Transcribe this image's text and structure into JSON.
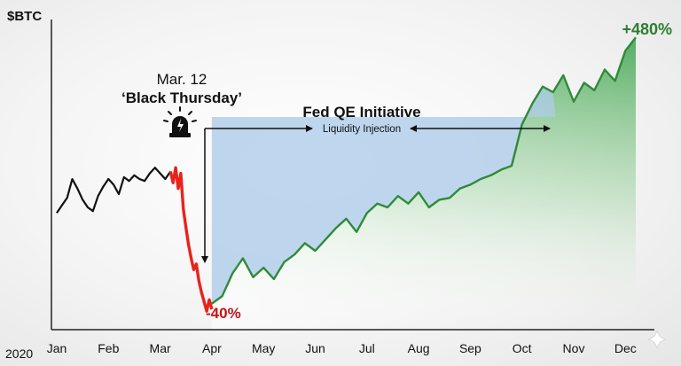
{
  "chart_data": {
    "type": "line",
    "ylabel": "$BTC",
    "year_label": "2020",
    "categories": [
      "Jan",
      "Feb",
      "Mar",
      "Apr",
      "May",
      "Jun",
      "Jul",
      "Aug",
      "Sep",
      "Oct",
      "Nov",
      "Dec"
    ],
    "series": [
      {
        "x": [
          0,
          0.1,
          0.2,
          0.3,
          0.4,
          0.5,
          0.6,
          0.7,
          0.8,
          0.9,
          1.0,
          1.1,
          1.2,
          1.3,
          1.4,
          1.5,
          1.6,
          1.7,
          1.8,
          1.9,
          2.0,
          2.1,
          2.2
        ],
        "values": [
          28,
          32,
          36,
          46,
          41,
          35,
          31,
          29,
          37,
          42,
          46,
          43,
          38,
          47,
          45,
          48,
          46,
          45,
          49,
          52,
          49,
          46,
          50
        ],
        "color": "#111111"
      },
      {
        "x": [
          2.2,
          2.25,
          2.3,
          2.35,
          2.4,
          2.45,
          2.5,
          2.55,
          2.6,
          2.65,
          2.7,
          2.75,
          2.8,
          2.85,
          2.9,
          2.95,
          3.0
        ],
        "values": [
          50,
          44,
          52,
          41,
          49,
          30,
          20,
          11,
          4,
          -2,
          1,
          -8,
          -14,
          -19,
          -24,
          -18,
          -23
        ],
        "color": "#e8231b"
      },
      {
        "x": [
          3.0,
          3.2,
          3.4,
          3.6,
          3.8,
          4.0,
          4.2,
          4.4,
          4.6,
          4.8,
          5.0,
          5.2,
          5.4,
          5.6,
          5.8,
          6.0,
          6.2,
          6.4,
          6.6,
          6.8,
          7.0,
          7.2,
          7.4,
          7.6,
          7.8,
          8.0,
          8.2,
          8.4,
          8.6,
          8.8,
          9.0,
          9.2,
          9.4,
          9.6,
          9.8,
          10.0,
          10.2,
          10.4,
          10.6,
          10.8,
          11.0,
          11.2
        ],
        "values": [
          -20,
          -16,
          -4,
          4,
          -6,
          -1,
          -7,
          2,
          6,
          12,
          8,
          14,
          20,
          25,
          18,
          28,
          33,
          31,
          37,
          33,
          39,
          31,
          35,
          36,
          41,
          43,
          46,
          48,
          51,
          53,
          75,
          86,
          95,
          92,
          101,
          87,
          97,
          93,
          104,
          98,
          114,
          121
        ],
        "color": "#2f8a3a"
      }
    ],
    "annotations": {
      "event_date": "Mar. 12",
      "event_name": "‘Black Thursday’",
      "initiative_title": "Fed QE Initiative",
      "initiative_subtitle": "Liquidity Injection",
      "drop_label": "-40%",
      "gain_label": "+480%"
    },
    "colors": {
      "pre_crash": "#111111",
      "crash": "#e8231b",
      "recovery": "#2f8a3a",
      "qe_band": "#a9c9e8",
      "green_fill": "#4caf50",
      "drop_text": "#c0161a",
      "gain_text": "#2e7d32"
    },
    "icons": [
      "siren-icon",
      "sparkle-icon"
    ]
  }
}
